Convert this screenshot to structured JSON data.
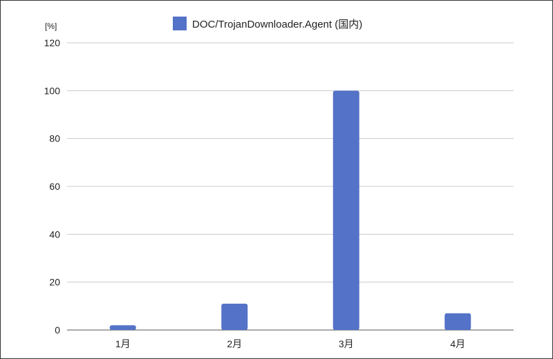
{
  "chart_data": {
    "type": "bar",
    "categories": [
      "1月",
      "2月",
      "3月",
      "4月"
    ],
    "series": [
      {
        "name": "DOC/TrojanDownloader.Agent (国内)",
        "values": [
          2,
          11,
          100,
          7
        ],
        "color": "#5472c7"
      }
    ],
    "ylabel": "[%]",
    "ylim": [
      0,
      120
    ],
    "yticks": [
      0,
      20,
      40,
      60,
      80,
      100,
      120
    ],
    "grid": true,
    "legend_position": "top-center"
  }
}
